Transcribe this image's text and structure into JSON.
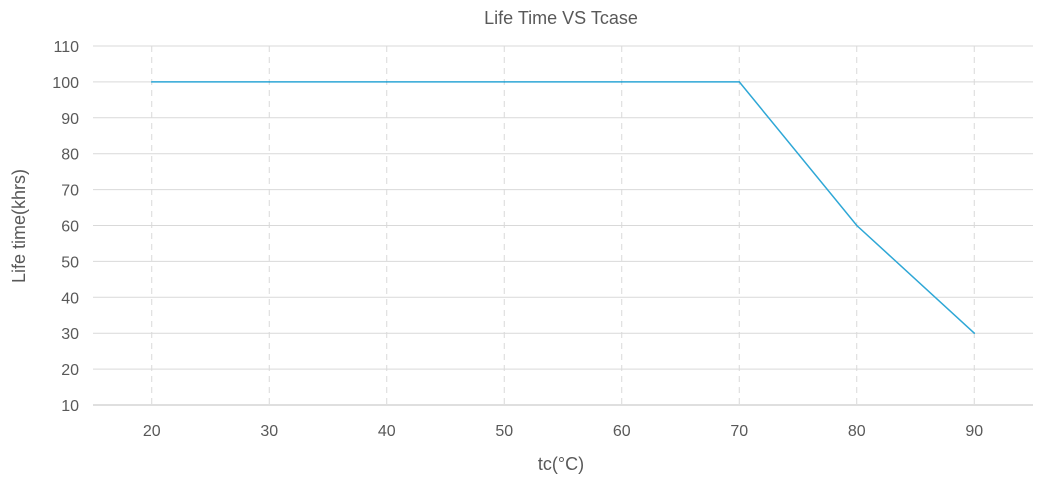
{
  "chart_data": {
    "type": "line",
    "title": "Life Time VS Tcase",
    "xlabel": "tc(°C)",
    "ylabel": "Life time(khrs)",
    "x": [
      20,
      30,
      40,
      50,
      60,
      70,
      80,
      90
    ],
    "categories": [
      "20",
      "30",
      "40",
      "50",
      "60",
      "70",
      "80",
      "90"
    ],
    "series": [
      {
        "values": [
          100,
          100,
          100,
          100,
          100,
          100,
          60,
          30
        ]
      }
    ],
    "ylim": [
      10,
      110
    ],
    "yticks": [
      10,
      20,
      30,
      40,
      50,
      60,
      70,
      80,
      90,
      100,
      110
    ],
    "grid": {
      "horizontal": true,
      "vertical": true,
      "vertical_style": "dashed"
    },
    "legend": "none",
    "colors": {
      "line": "#2EA7D6",
      "hgrid": "#D9D9D9",
      "vgrid": "#D9D9D9",
      "axis": "#BFBFBF",
      "text": "#595959"
    }
  }
}
